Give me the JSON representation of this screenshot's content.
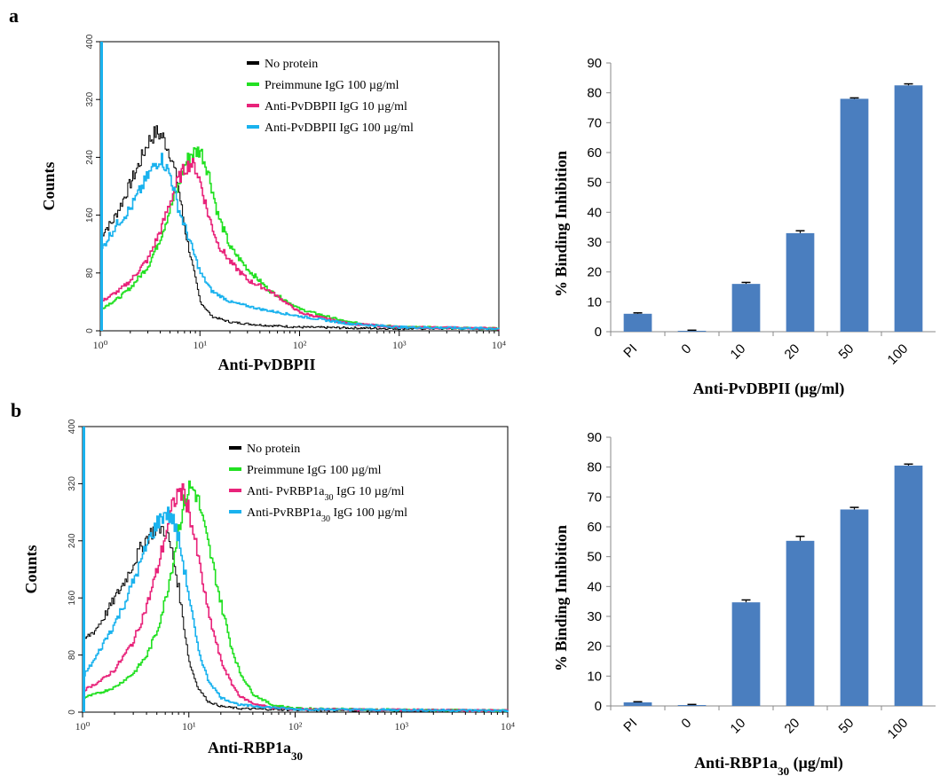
{
  "panels": [
    {
      "letter": "a"
    },
    {
      "letter": "b"
    }
  ],
  "chart_data": [
    {
      "type": "line",
      "panel": "a",
      "xlabel": "Anti-PvDBPII",
      "ylabel": "Counts",
      "x_scale": "log",
      "xlim": [
        1,
        10000
      ],
      "ylim": [
        0,
        400
      ],
      "xtick_labels": [
        "10⁰",
        "10¹",
        "10²",
        "10³",
        "10⁴"
      ],
      "ytick_labels": [
        "0",
        "80",
        "160",
        "240",
        "320",
        "400"
      ],
      "legend_position": "top-right",
      "series": [
        {
          "name": "No protein",
          "color": "#000000",
          "x": [
            1,
            1.1,
            1.3,
            1.6,
            2,
            2.5,
            3,
            3.6,
            4.2,
            5,
            6,
            7,
            8.5,
            10,
            13,
            20,
            40,
            100,
            1000,
            10000
          ],
          "y": [
            130,
            140,
            150,
            175,
            205,
            235,
            262,
            275,
            268,
            245,
            200,
            140,
            85,
            40,
            20,
            12,
            8,
            5,
            3,
            3
          ]
        },
        {
          "name": "Preimmune  IgG 100 µg/ml",
          "color": "#22e022",
          "x": [
            1,
            1.5,
            2,
            3,
            4,
            5,
            6,
            7,
            8,
            10,
            12,
            15,
            20,
            30,
            50,
            100,
            300,
            1000,
            10000
          ],
          "y": [
            30,
            45,
            60,
            90,
            130,
            170,
            200,
            230,
            245,
            250,
            220,
            160,
            115,
            85,
            55,
            30,
            12,
            5,
            3
          ]
        },
        {
          "name": "Anti-PvDBPII  IgG 10 µg/ml",
          "color": "#e8237a",
          "x": [
            1,
            1.5,
            2,
            3,
            4,
            5,
            6,
            7,
            8,
            9,
            10,
            12,
            15,
            20,
            30,
            50,
            100,
            300,
            1000,
            10000
          ],
          "y": [
            40,
            55,
            70,
            100,
            140,
            180,
            210,
            225,
            232,
            225,
            205,
            160,
            120,
            95,
            70,
            55,
            25,
            10,
            5,
            3
          ]
        },
        {
          "name": "Anti-PvDBPII  IgG 100 µg/ml",
          "color": "#1ab2ee",
          "x": [
            1,
            1.2,
            1.5,
            2,
            2.5,
            3,
            3.5,
            4,
            5,
            6,
            8,
            10,
            13,
            20,
            40,
            100,
            300,
            1000,
            10000
          ],
          "y": [
            110,
            130,
            150,
            170,
            195,
            215,
            230,
            240,
            215,
            170,
            120,
            80,
            55,
            40,
            30,
            20,
            10,
            5,
            3
          ]
        }
      ]
    },
    {
      "type": "bar",
      "panel": "a",
      "categories": [
        "PI",
        "0",
        "10",
        "20",
        "50",
        "100"
      ],
      "values": [
        6,
        0.3,
        16,
        33,
        78,
        82.5
      ],
      "errors": [
        0.3,
        0.2,
        0.5,
        0.8,
        0.3,
        0.5
      ],
      "xlabel": "Anti-PvDBPII (µg/ml)",
      "ylabel": "% Binding Inhibition",
      "ylim": [
        0,
        90
      ],
      "ytick_labels": [
        "0",
        "10",
        "20",
        "30",
        "40",
        "50",
        "60",
        "70",
        "80",
        "90"
      ],
      "color": "#4a7ebf"
    },
    {
      "type": "line",
      "panel": "b",
      "xlabel_main": "Anti-RBP1a",
      "xlabel_sub": "30",
      "ylabel": "Counts",
      "x_scale": "log",
      "xlim": [
        1,
        10000
      ],
      "ylim": [
        0,
        400
      ],
      "xtick_labels": [
        "10⁰",
        "10¹",
        "10²",
        "10³",
        "10⁴"
      ],
      "ytick_labels": [
        "0",
        "80",
        "160",
        "240",
        "320",
        "400"
      ],
      "legend_position": "top-right",
      "series": [
        {
          "name": "No protein",
          "color": "#000000",
          "x": [
            1,
            1.3,
            1.6,
            2,
            2.5,
            3,
            3.5,
            4,
            5,
            6,
            7,
            8,
            9,
            10,
            12,
            15,
            20,
            30,
            100,
            1000,
            10000
          ],
          "y": [
            100,
            115,
            135,
            160,
            185,
            210,
            230,
            245,
            260,
            255,
            220,
            170,
            115,
            70,
            35,
            15,
            8,
            5,
            3,
            2,
            2
          ]
        },
        {
          "name": "Preimmune  IgG 100 µg/ml",
          "color": "#22e022",
          "x": [
            1,
            1.5,
            2,
            3,
            4,
            5,
            6,
            7,
            8,
            9,
            10,
            11,
            12,
            14,
            17,
            20,
            25,
            30,
            40,
            60,
            100,
            1000,
            10000
          ],
          "y": [
            20,
            28,
            35,
            55,
            80,
            115,
            160,
            210,
            260,
            295,
            315,
            312,
            300,
            255,
            200,
            150,
            90,
            55,
            25,
            10,
            5,
            3,
            2
          ]
        },
        {
          "name": "Anti- PvRBP1a30 IgG 10 µg/ml",
          "color": "#e8237a",
          "x": [
            1,
            1.5,
            2,
            3,
            4,
            5,
            6,
            7,
            8,
            9,
            10,
            12,
            15,
            20,
            25,
            30,
            40,
            60,
            100,
            1000,
            10000
          ],
          "y": [
            30,
            45,
            60,
            100,
            150,
            200,
            250,
            290,
            310,
            305,
            280,
            220,
            140,
            70,
            40,
            22,
            12,
            6,
            4,
            3,
            2
          ]
        },
        {
          "name": "Anti-PvRBP1a30 IgG 100 µg/ml",
          "color": "#1ab2ee",
          "x": [
            1,
            1.3,
            1.6,
            2,
            2.5,
            3,
            3.5,
            4,
            5,
            6,
            7,
            8,
            10,
            12,
            15,
            20,
            30,
            100,
            1000,
            10000
          ],
          "y": [
            50,
            75,
            100,
            125,
            155,
            185,
            210,
            235,
            265,
            280,
            270,
            240,
            160,
            90,
            45,
            20,
            10,
            4,
            3,
            2
          ]
        }
      ]
    },
    {
      "type": "bar",
      "panel": "b",
      "categories": [
        "PI",
        "0",
        "10",
        "20",
        "50",
        "100"
      ],
      "values": [
        1.2,
        0.3,
        34.7,
        55.3,
        65.8,
        80.5
      ],
      "errors": [
        0.2,
        0.2,
        0.8,
        1.5,
        0.7,
        0.5
      ],
      "xlabel_main": "Anti-RBP1a",
      "xlabel_sub": "30",
      "xlabel_tail": " (µg/ml)",
      "ylabel": "% Binding Inhibition",
      "ylim": [
        0,
        90
      ],
      "ytick_labels": [
        "0",
        "10",
        "20",
        "30",
        "40",
        "50",
        "60",
        "70",
        "80",
        "90"
      ],
      "color": "#4a7ebf"
    }
  ]
}
